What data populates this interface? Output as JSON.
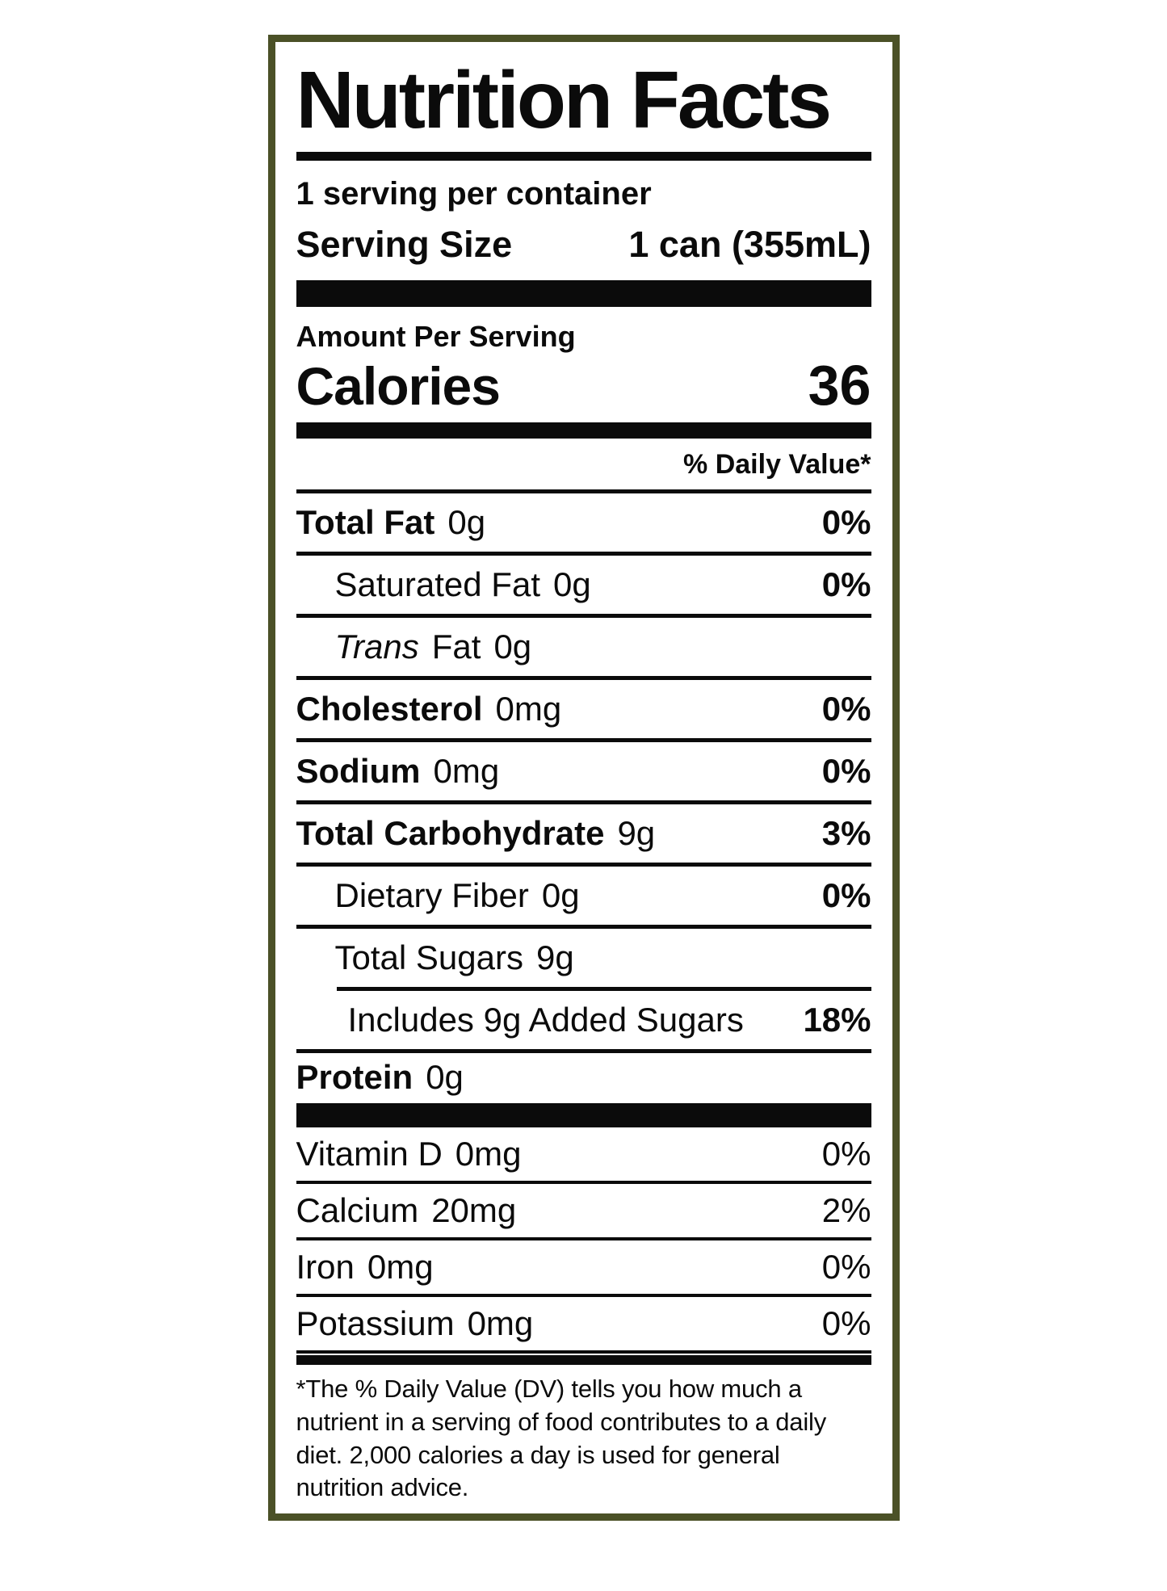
{
  "label": {
    "title": "Nutrition Facts",
    "servings_per_container": "1 serving per container",
    "serving_size_label": "Serving Size",
    "serving_size_value": "1 can (355mL)",
    "amount_per_serving": "Amount Per Serving",
    "calories_label": "Calories",
    "calories_value": "36",
    "daily_value_header": "% Daily Value*",
    "nutrients": [
      {
        "name": "Total Fat",
        "amount": "0g",
        "dv": "0%"
      },
      {
        "name": "Saturated Fat",
        "amount": "0g",
        "dv": "0%"
      },
      {
        "name_italic": "Trans",
        "name": "Fat",
        "amount": "0g",
        "dv": ""
      },
      {
        "name": "Cholesterol",
        "amount": "0mg",
        "dv": "0%"
      },
      {
        "name": "Sodium",
        "amount": "0mg",
        "dv": "0%"
      },
      {
        "name": "Total Carbohydrate",
        "amount": "9g",
        "dv": "3%"
      },
      {
        "name": "Dietary Fiber",
        "amount": "0g",
        "dv": "0%"
      },
      {
        "name": "Total Sugars",
        "amount": "9g",
        "dv": ""
      },
      {
        "name": "Includes 9g Added Sugars",
        "amount": "",
        "dv": "18%"
      },
      {
        "name": "Protein",
        "amount": "0g",
        "dv": ""
      }
    ],
    "micronutrients": [
      {
        "name": "Vitamin D",
        "amount": "0mg",
        "dv": "0%"
      },
      {
        "name": "Calcium",
        "amount": "20mg",
        "dv": "2%"
      },
      {
        "name": "Iron",
        "amount": "0mg",
        "dv": "0%"
      },
      {
        "name": "Potassium",
        "amount": "0mg",
        "dv": "0%"
      }
    ],
    "footnote": "*The % Daily Value (DV) tells you how much a nutrient in a serving of food contributes to a daily diet. 2,000 calories a day is used for general nutrition advice."
  },
  "colors": {
    "border": "#4b5127",
    "text": "#0b0b0b",
    "background": "#ffffff"
  }
}
